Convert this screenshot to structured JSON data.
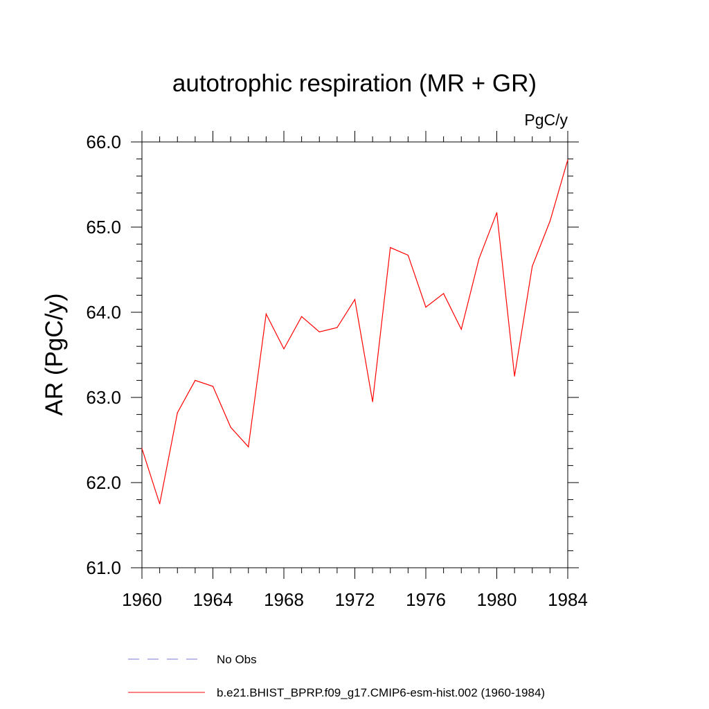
{
  "chart_data": {
    "type": "line",
    "title": "autotrophic respiration (MR + GR)",
    "units": "PgC/y",
    "ylabel": "AR  (PgC/y)",
    "xlabel": "",
    "xlim": [
      1960,
      1984
    ],
    "ylim": [
      61.0,
      66.0
    ],
    "x_ticks": [
      1960,
      1964,
      1968,
      1972,
      1976,
      1980,
      1984
    ],
    "y_ticks": [
      61.0,
      62.0,
      63.0,
      64.0,
      65.0,
      66.0
    ],
    "x_tick_labels": [
      "1960",
      "1964",
      "1968",
      "1972",
      "1976",
      "1980",
      "1984"
    ],
    "y_tick_labels": [
      "61.0",
      "62.0",
      "63.0",
      "64.0",
      "65.0",
      "66.0"
    ],
    "x_minor_step": 1,
    "y_minor_step": 0.2,
    "grid": false,
    "legend_position": "bottom",
    "series": [
      {
        "name": "b.e21.BHIST_BPRP.f09_g17.CMIP6-esm-hist.002 (1960-1984)",
        "color": "#ff0000",
        "style": "solid",
        "x": [
          1960,
          1961,
          1962,
          1963,
          1964,
          1965,
          1966,
          1967,
          1968,
          1969,
          1970,
          1971,
          1972,
          1973,
          1974,
          1975,
          1976,
          1977,
          1978,
          1979,
          1980,
          1981,
          1982,
          1983,
          1984
        ],
        "y": [
          62.4,
          61.75,
          62.82,
          63.2,
          63.13,
          62.65,
          62.42,
          63.98,
          63.57,
          63.95,
          63.77,
          63.82,
          64.15,
          62.95,
          64.76,
          64.67,
          64.06,
          64.22,
          63.8,
          64.63,
          65.17,
          63.25,
          64.54,
          65.07,
          65.79
        ]
      }
    ],
    "legend": [
      {
        "label": "No Obs",
        "color": "#7777dd",
        "style": "dashed"
      },
      {
        "label": "b.e21.BHIST_BPRP.f09_g17.CMIP6-esm-hist.002 (1960-1984)",
        "color": "#ff0000",
        "style": "solid"
      }
    ]
  }
}
